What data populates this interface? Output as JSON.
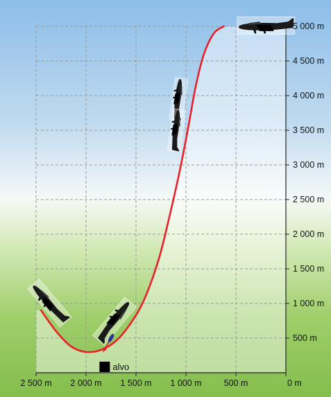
{
  "colors": {
    "sky_top": "#8cbde8",
    "sky_mid": "#d6e8f5",
    "horizon": "#f3f8f2",
    "ground": "#8cc455",
    "ground_dark": "#76b33e",
    "panel": "#ffffff",
    "grid": "#9a9a9a",
    "path": "#e8202a",
    "bomb_arrow": "#e8202a",
    "aircraft": "#1a1a1a",
    "bomb": "#2b2f8f",
    "target": "#000000"
  },
  "icons": {
    "aircraft": "dive-bomber-silhouette-icon",
    "bomb": "bomb-icon",
    "target": "target-square-icon"
  },
  "chart_data": {
    "type": "line",
    "x_axis": {
      "range_m": [
        0,
        2500
      ],
      "reversed": true,
      "ticks": [
        2500,
        2000,
        1500,
        1000,
        500,
        0
      ],
      "tick_labels": [
        "2 500 m",
        "2 000 m",
        "1 500 m",
        "1 000 m",
        "500 m",
        "0 m"
      ]
    },
    "y_axis": {
      "range_m": [
        0,
        5000
      ],
      "position": "right",
      "ticks": [
        500,
        1000,
        1500,
        2000,
        2500,
        3000,
        3500,
        4000,
        4500,
        5000
      ],
      "tick_labels": [
        "500 m",
        "1 000 m",
        "1 500 m",
        "2 000 m",
        "2 500 m",
        "3 000 m",
        "3 500 m",
        "4 000 m",
        "4 500 m",
        "5 000 m"
      ]
    },
    "grid": true,
    "series": [
      {
        "kind": "flight-path",
        "points": [
          [
            620,
            5000
          ],
          [
            720,
            4900
          ],
          [
            820,
            4600
          ],
          [
            900,
            4150
          ],
          [
            970,
            3600
          ],
          [
            1050,
            3000
          ],
          [
            1150,
            2350
          ],
          [
            1270,
            1650
          ],
          [
            1420,
            1050
          ],
          [
            1560,
            700
          ],
          [
            1700,
            460
          ],
          [
            1850,
            330
          ],
          [
            2000,
            300
          ],
          [
            2150,
            380
          ],
          [
            2300,
            600
          ],
          [
            2450,
            900
          ]
        ]
      }
    ],
    "aircraft_positions": [
      {
        "x": 200,
        "y": 5000,
        "attitude": "level"
      },
      {
        "x": 1080,
        "y": 3950,
        "attitude": "vertical-dive"
      },
      {
        "x": 1100,
        "y": 3500,
        "attitude": "vertical-dive"
      },
      {
        "x": 1720,
        "y": 750,
        "attitude": "diving-release"
      },
      {
        "x": 2370,
        "y": 1000,
        "attitude": "climbing"
      }
    ],
    "bomb_release": {
      "from": [
        1750,
        500
      ],
      "to": [
        1830,
        300
      ]
    },
    "target": {
      "x": 1810,
      "y": 0,
      "label": "alvo"
    }
  }
}
